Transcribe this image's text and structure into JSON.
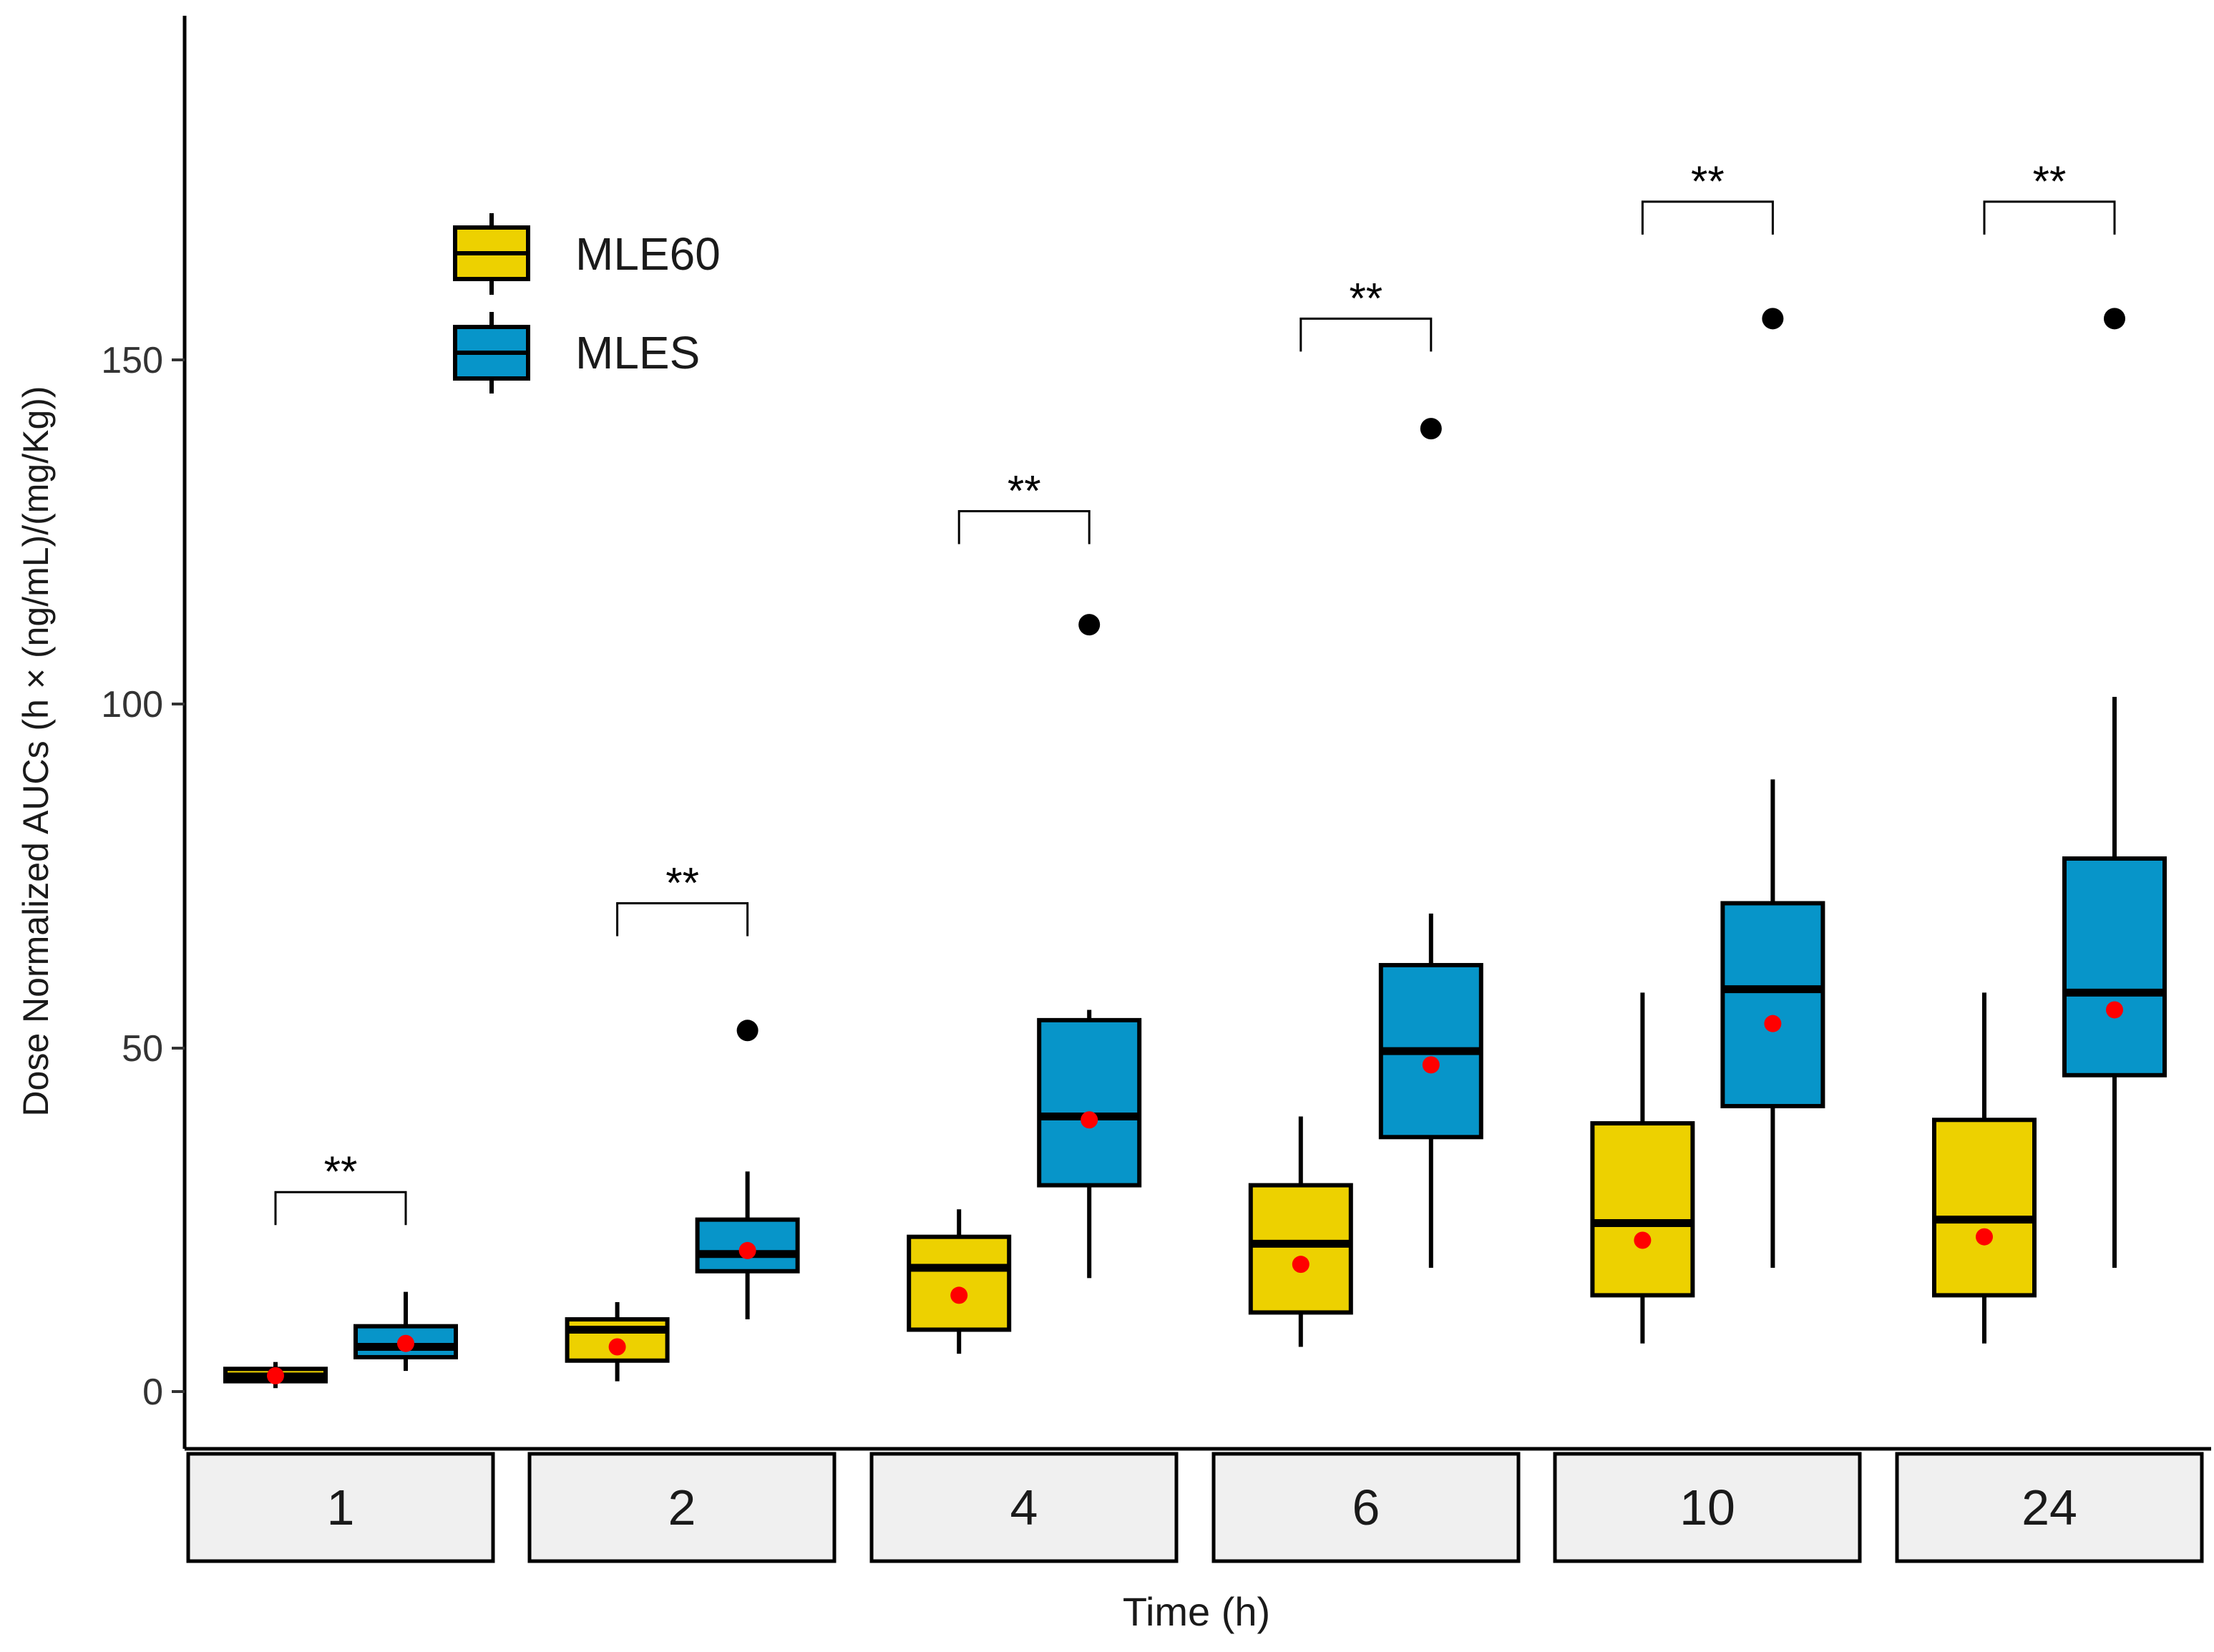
{
  "chart_data": {
    "type": "boxplot",
    "ylabel": "Dose Normalized AUCs (h × (ng/mL)/(mg/Kg))",
    "xlabel": "Time (h)",
    "ylim": [
      -8,
      200
    ],
    "yticks": [
      0,
      50,
      100,
      150
    ],
    "ytick_labels": [
      "0",
      "50",
      "100",
      "150"
    ],
    "legend": {
      "position": "top-left",
      "entries": [
        "MLE60",
        "MLES"
      ]
    },
    "colors": {
      "MLE60": "#EDD100",
      "MLES": "#0795C9",
      "mean": "#FF0000",
      "outlier": "#000000",
      "strip": "#F0F0F0"
    },
    "facets": [
      {
        "label": "1",
        "significance": "**",
        "groups": [
          {
            "series": "MLE60",
            "whisker_low": 0.5,
            "q1": 1.5,
            "median": 2.2,
            "q3": 3.3,
            "whisker_high": 4.3,
            "mean": 2.3,
            "outliers": []
          },
          {
            "series": "MLES",
            "whisker_low": 3.0,
            "q1": 5.0,
            "median": 6.5,
            "q3": 9.5,
            "whisker_high": 14.5,
            "mean": 7.0,
            "outliers": []
          }
        ]
      },
      {
        "label": "2",
        "significance": "**",
        "groups": [
          {
            "series": "MLE60",
            "whisker_low": 1.5,
            "q1": 4.5,
            "median": 9.0,
            "q3": 10.5,
            "whisker_high": 13.0,
            "mean": 6.5,
            "outliers": []
          },
          {
            "series": "MLES",
            "whisker_low": 10.5,
            "q1": 17.5,
            "median": 20.0,
            "q3": 25.0,
            "whisker_high": 32.0,
            "mean": 20.5,
            "outliers": [
              52.5
            ]
          }
        ]
      },
      {
        "label": "4",
        "significance": "**",
        "groups": [
          {
            "series": "MLE60",
            "whisker_low": 5.5,
            "q1": 9.0,
            "median": 18.0,
            "q3": 22.5,
            "whisker_high": 26.5,
            "mean": 14.0,
            "outliers": []
          },
          {
            "series": "MLES",
            "whisker_low": 16.5,
            "q1": 30.0,
            "median": 40.0,
            "q3": 54.0,
            "whisker_high": 55.5,
            "mean": 39.5,
            "outliers": [
              111.5
            ]
          }
        ]
      },
      {
        "label": "6",
        "significance": "**",
        "groups": [
          {
            "series": "MLE60",
            "whisker_low": 6.5,
            "q1": 11.5,
            "median": 21.5,
            "q3": 30.0,
            "whisker_high": 40.0,
            "mean": 18.5,
            "outliers": []
          },
          {
            "series": "MLES",
            "whisker_low": 18.0,
            "q1": 37.0,
            "median": 49.5,
            "q3": 62.0,
            "whisker_high": 69.5,
            "mean": 47.5,
            "outliers": [
              140.0
            ]
          }
        ]
      },
      {
        "label": "10",
        "significance": "**",
        "groups": [
          {
            "series": "MLE60",
            "whisker_low": 7.0,
            "q1": 14.0,
            "median": 24.5,
            "q3": 39.0,
            "whisker_high": 58.0,
            "mean": 22.0,
            "outliers": []
          },
          {
            "series": "MLES",
            "whisker_low": 18.0,
            "q1": 41.5,
            "median": 58.5,
            "q3": 71.0,
            "whisker_high": 89.0,
            "mean": 53.5,
            "outliers": [
              156.0
            ]
          }
        ]
      },
      {
        "label": "24",
        "significance": "**",
        "groups": [
          {
            "series": "MLE60",
            "whisker_low": 7.0,
            "q1": 14.0,
            "median": 25.0,
            "q3": 39.5,
            "whisker_high": 58.0,
            "mean": 22.5,
            "outliers": []
          },
          {
            "series": "MLES",
            "whisker_low": 18.0,
            "q1": 46.0,
            "median": 58.0,
            "q3": 77.5,
            "whisker_high": 101.0,
            "mean": 55.5,
            "outliers": [
              156.0
            ]
          }
        ]
      }
    ],
    "significance_bracket_levels": [
      29,
      71,
      128,
      156,
      173,
      173
    ]
  }
}
